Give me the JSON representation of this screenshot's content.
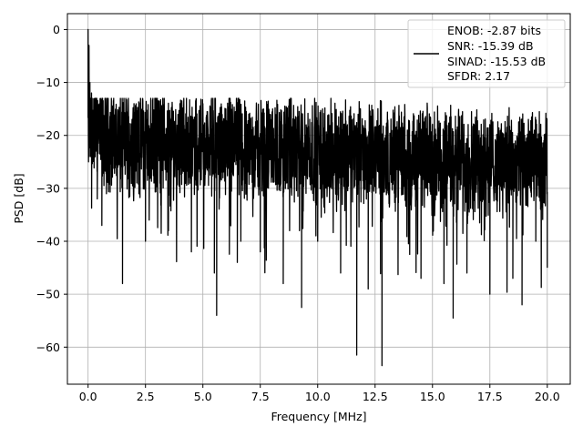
{
  "chart_data": {
    "type": "line",
    "xlabel": "Frequency [MHz]",
    "ylabel": "PSD [dB]",
    "xlim": [
      -0.9,
      21.0
    ],
    "ylim": [
      -67,
      3
    ],
    "xticks": [
      0.0,
      2.5,
      5.0,
      7.5,
      10.0,
      12.5,
      15.0,
      17.5,
      20.0
    ],
    "xtick_labels": [
      "0.0",
      "2.5",
      "5.0",
      "7.5",
      "10.0",
      "12.5",
      "15.0",
      "17.5",
      "20.0"
    ],
    "yticks": [
      0,
      -10,
      -20,
      -30,
      -40,
      -50,
      -60
    ],
    "ytick_labels": [
      "0",
      "−10",
      "−20",
      "−30",
      "−40",
      "−50",
      "−60"
    ],
    "grid": true,
    "legend_position": "top-right",
    "line_color": "#000000",
    "legend": [
      "ENOB: -2.87 bits",
      "SNR: -15.39 dB",
      "SINAD: -15.53 dB",
      "SFDR: 2.17"
    ],
    "series": [
      {
        "x": [
          0.0,
          0.02,
          0.04,
          0.06,
          0.08,
          0.1,
          0.15,
          0.2,
          0.3,
          0.4,
          0.5,
          0.6,
          1.0,
          1.5,
          2.0,
          2.5,
          3.0,
          3.5,
          4.0,
          4.5,
          5.0,
          5.5,
          5.6,
          6.0,
          6.5,
          7.0,
          7.5,
          8.0,
          8.5,
          9.0,
          9.3,
          9.5,
          10.0,
          10.5,
          11.0,
          11.5,
          11.7,
          12.0,
          12.2,
          12.5,
          12.8,
          13.0,
          13.5,
          14.0,
          14.5,
          15.0,
          15.5,
          15.9,
          16.0,
          16.5,
          17.0,
          17.5,
          18.0,
          18.5,
          18.9,
          19.0,
          19.5,
          20.0
        ],
        "y": [
          0.0,
          -25.0,
          -3.0,
          -22.0,
          -10.0,
          -24.0,
          -12.0,
          -20.0,
          -15.0,
          -32.0,
          -14.0,
          -37.0,
          -20.0,
          -48.0,
          -14.0,
          -40.0,
          -15.0,
          -38.0,
          -14.0,
          -42.0,
          -14.0,
          -46.0,
          -54.0,
          -15.0,
          -44.0,
          -16.0,
          -42.0,
          -17.0,
          -48.0,
          -17.0,
          -52.5,
          -18.0,
          -40.0,
          -19.0,
          -46.0,
          -20.0,
          -61.5,
          -21.0,
          -49.0,
          -22.0,
          -63.5,
          -22.0,
          -44.0,
          -20.0,
          -47.0,
          -22.0,
          -48.0,
          -54.5,
          -22.0,
          -46.0,
          -20.0,
          -50.0,
          -21.0,
          -47.0,
          -52.0,
          -22.0,
          -40.0,
          -45.0
        ]
      }
    ]
  }
}
